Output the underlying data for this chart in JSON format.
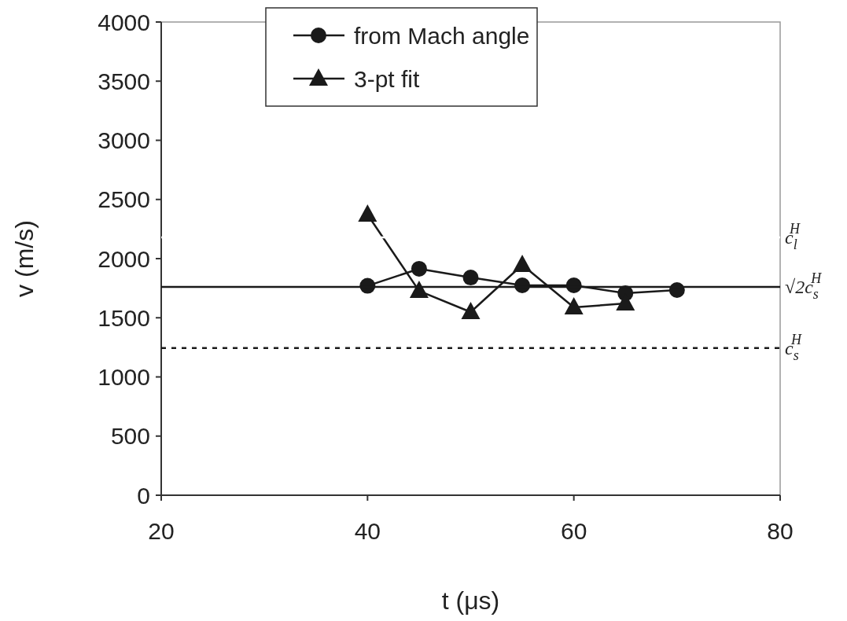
{
  "chart_data": {
    "type": "line",
    "xlabel": "t  (μs)",
    "ylabel": "v (m/s)",
    "x": [
      40,
      45,
      50,
      55,
      60,
      65,
      70
    ],
    "series": [
      {
        "name": "from Mach angle",
        "color": "#1a1a1a",
        "marker": "circle",
        "values": [
          1770,
          1914,
          1840,
          1774,
          1774,
          1707,
          1734
        ]
      },
      {
        "name": "3-pt fit",
        "color": "#1a1a1a",
        "marker": "triangle",
        "values": [
          2372,
          1727,
          1548,
          1947,
          1588,
          1621,
          null
        ]
      }
    ],
    "xlim": [
      20,
      80
    ],
    "xticks": [
      20,
      40,
      60,
      80
    ],
    "ylim": [
      0,
      4000
    ],
    "yticks": [
      0,
      500,
      1000,
      1500,
      2000,
      2500,
      3000,
      3500,
      4000
    ],
    "ref_lines": [
      {
        "axis": "y",
        "value": 2180,
        "label": "c$_{l}$$^{H}$",
        "color": "#ffffff"
      },
      {
        "axis": "y",
        "value": 1760,
        "label": "√2c$_{s}$$^{H}$",
        "color": "#1a1a1a",
        "line_style": "solid"
      },
      {
        "axis": "y",
        "value": 1245,
        "label": "c$_{s}$$^{H}$",
        "color": "#1a1a1a",
        "line_style": "dashed"
      }
    ],
    "grid": false,
    "legend": "top",
    "line_style": "solid"
  }
}
